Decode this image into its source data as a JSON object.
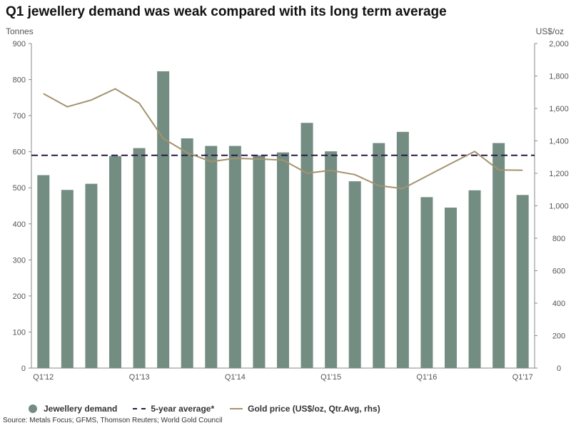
{
  "chart_data": {
    "type": "bar",
    "title": "Q1 jewellery demand was weak compared with its long term average",
    "ylabel_left": "Tonnes",
    "ylabel_right": "US$/oz",
    "ylim": [
      0,
      900
    ],
    "ylim_right": [
      0,
      2000
    ],
    "yticks_left": [
      "0",
      "100",
      "200",
      "300",
      "400",
      "500",
      "600",
      "700",
      "800",
      "900"
    ],
    "yticks_right": [
      "0",
      "200",
      "400",
      "600",
      "800",
      "1,000",
      "1,200",
      "1,400",
      "1,600",
      "1,800",
      "2,000"
    ],
    "x_tick_labels": [
      {
        "index": 0,
        "label": "Q1'12"
      },
      {
        "index": 4,
        "label": "Q1'13"
      },
      {
        "index": 8,
        "label": "Q1'14"
      },
      {
        "index": 12,
        "label": "Q1'15"
      },
      {
        "index": 16,
        "label": "Q1'16"
      },
      {
        "index": 20,
        "label": "Q1'17"
      }
    ],
    "categories": [
      "Q1'12",
      "Q2'12",
      "Q3'12",
      "Q4'12",
      "Q1'13",
      "Q2'13",
      "Q3'13",
      "Q4'13",
      "Q1'14",
      "Q2'14",
      "Q3'14",
      "Q4'14",
      "Q1'15",
      "Q2'15",
      "Q3'15",
      "Q4'15",
      "Q1'16",
      "Q2'16",
      "Q3'16",
      "Q4'16",
      "Q1'17"
    ],
    "series": [
      {
        "name": "Jewellery demand",
        "type": "bar",
        "axis": "left",
        "color": "#748d82",
        "values": [
          535,
          494,
          511,
          588,
          610,
          823,
          637,
          616,
          616,
          590,
          598,
          680,
          601,
          518,
          624,
          655,
          474,
          445,
          493,
          624,
          480
        ]
      },
      {
        "name": "5-year average*",
        "type": "hline",
        "axis": "left",
        "color": "#2a1a47",
        "value": 590
      },
      {
        "name": "Gold price (US$/oz, Qtr.Avg, rhs)",
        "type": "line",
        "axis": "right",
        "color": "#a4936e",
        "values": [
          1691,
          1610,
          1652,
          1721,
          1632,
          1415,
          1327,
          1272,
          1293,
          1288,
          1282,
          1201,
          1218,
          1192,
          1124,
          1106,
          1183,
          1260,
          1335,
          1221,
          1219
        ]
      }
    ]
  },
  "legend": {
    "demand": "Jewellery demand",
    "average": "5-year average*",
    "gold": "Gold price (US$/oz, Qtr.Avg, rhs)"
  },
  "source": "Source: Metals Focus; GFMS, Thomson Reuters; World Gold Council"
}
